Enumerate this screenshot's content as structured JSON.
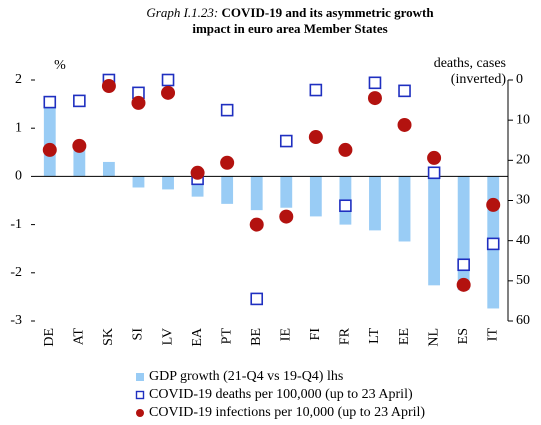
{
  "chart_data": {
    "type": "bar",
    "title": {
      "label": "Graph I.1.23:",
      "lines": [
        "COVID-19 and its asymmetric growth",
        "impact in euro area Member States"
      ]
    },
    "ylabel": "%",
    "y2label": [
      "deaths, cases",
      "(inverted)"
    ],
    "categories": [
      "DE",
      "AT",
      "SK",
      "SI",
      "LV",
      "EA",
      "PT",
      "BE",
      "IE",
      "FI",
      "FR",
      "LT",
      "EE",
      "NL",
      "ES",
      "IT"
    ],
    "series": [
      {
        "name": "GDP growth (21-Q4 vs 19-Q4) lhs",
        "type": "bar",
        "color": "#99ccf5",
        "axis": "y",
        "values": [
          1.55,
          0.6,
          0.3,
          -0.23,
          -0.27,
          -0.42,
          -0.57,
          -0.7,
          -0.65,
          -0.83,
          -1.0,
          -1.12,
          -1.35,
          -2.26,
          -2.36,
          -2.74
        ]
      },
      {
        "name": "COVID-19 deaths per 100,000 (up to 23 April)",
        "type": "square",
        "color": "#1f2fc0",
        "axis": "y2",
        "values": [
          5.5,
          5.2,
          0,
          3.2,
          0,
          24.6,
          7.5,
          54.5,
          15.2,
          2.5,
          31.3,
          0.7,
          2.7,
          23.1,
          46,
          40.8
        ]
      },
      {
        "name": "COVID-19 infections per 10,000 (up to 23 April)",
        "type": "circle",
        "color": "#b3120f",
        "axis": "y2",
        "values": [
          17.4,
          16.4,
          1.5,
          5.7,
          3.2,
          23.1,
          20.6,
          36,
          34,
          14.2,
          17.4,
          4.5,
          11.2,
          19.4,
          51,
          31.1
        ]
      }
    ],
    "ylim": [
      -3,
      2
    ],
    "yticks": [
      -3,
      -2,
      -1,
      0,
      1,
      2
    ],
    "y2lim": [
      0,
      60
    ],
    "y2ticks": [
      0,
      10,
      20,
      30,
      40,
      50,
      60
    ],
    "y2inverted": true
  }
}
